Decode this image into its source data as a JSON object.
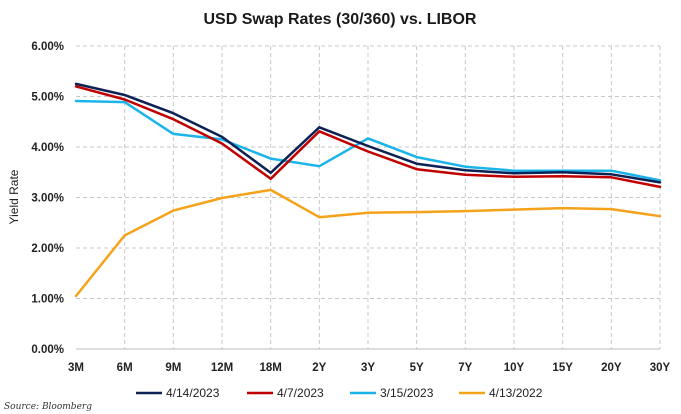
{
  "chart_data": {
    "type": "line",
    "title": "USD Swap Rates (30/360) vs. LIBOR",
    "xlabel": "",
    "ylabel": "Yield Rate",
    "ylim": [
      0,
      6
    ],
    "y_ticks": [
      "0.00%",
      "1.00%",
      "2.00%",
      "3.00%",
      "4.00%",
      "5.00%",
      "6.00%"
    ],
    "categories": [
      "3M",
      "6M",
      "9M",
      "12M",
      "18M",
      "2Y",
      "3Y",
      "5Y",
      "7Y",
      "10Y",
      "15Y",
      "20Y",
      "30Y"
    ],
    "grid": true,
    "legend_position": "bottom",
    "series": [
      {
        "name": "4/14/2023",
        "color": "#0d2155",
        "values": [
          5.25,
          5.03,
          4.67,
          4.2,
          3.49,
          4.39,
          4.02,
          3.67,
          3.54,
          3.48,
          3.5,
          3.46,
          3.3
        ]
      },
      {
        "name": "4/7/2023",
        "color": "#c00000",
        "values": [
          5.2,
          4.94,
          4.55,
          4.07,
          3.37,
          4.31,
          3.91,
          3.56,
          3.45,
          3.41,
          3.42,
          3.4,
          3.21
        ]
      },
      {
        "name": "3/15/2023",
        "color": "#1ab4ea",
        "values": [
          4.91,
          4.89,
          4.26,
          4.15,
          3.77,
          3.62,
          4.17,
          3.8,
          3.61,
          3.53,
          3.53,
          3.53,
          3.34
        ]
      },
      {
        "name": "4/13/2022",
        "color": "#f5a21b",
        "values": [
          1.05,
          2.25,
          2.74,
          2.99,
          3.15,
          2.61,
          2.7,
          2.71,
          2.73,
          2.76,
          2.79,
          2.77,
          2.63
        ]
      }
    ]
  },
  "source": "Source: Bloomberg"
}
